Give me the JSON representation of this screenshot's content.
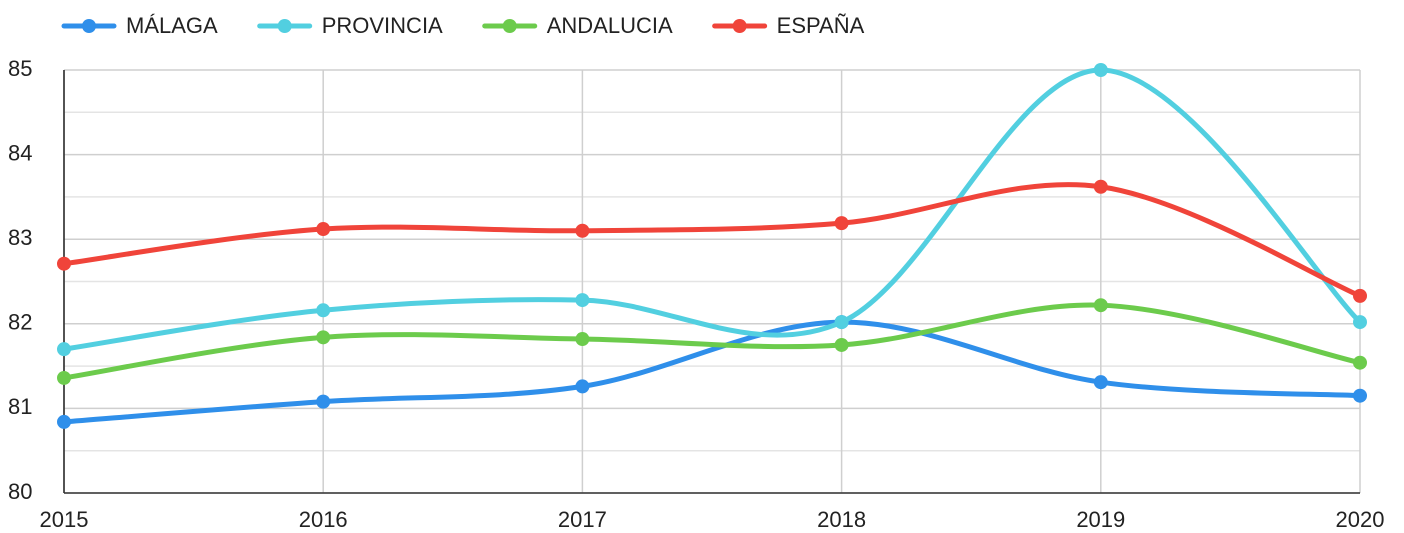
{
  "chart_data": {
    "type": "line",
    "x": [
      2015,
      2016,
      2017,
      2018,
      2019,
      2020
    ],
    "xlim": [
      2015,
      2020
    ],
    "xticks": [
      2015,
      2016,
      2017,
      2018,
      2019,
      2020
    ],
    "ylim": [
      80,
      85
    ],
    "yticks": [
      80,
      81,
      82,
      83,
      84,
      85
    ],
    "y_minor_ticks": [
      80.5,
      81.5,
      82.5,
      83.5,
      84.5
    ],
    "grid": true,
    "smooth": true,
    "legend": "top",
    "series": [
      {
        "name": "MÁLAGA",
        "color": "#2f8fea",
        "values": [
          80.84,
          81.08,
          81.26,
          82.02,
          81.31,
          81.15
        ]
      },
      {
        "name": "PROVINCIA",
        "color": "#52cfe0",
        "values": [
          81.7,
          82.16,
          82.28,
          82.02,
          85.0,
          82.02
        ]
      },
      {
        "name": "ANDALUCIA",
        "color": "#6ccb4c",
        "values": [
          81.36,
          81.84,
          81.82,
          81.75,
          82.22,
          81.54
        ]
      },
      {
        "name": "ESPAÑA",
        "color": "#f0443a",
        "values": [
          82.71,
          83.12,
          83.1,
          83.19,
          83.62,
          82.33
        ]
      }
    ]
  }
}
